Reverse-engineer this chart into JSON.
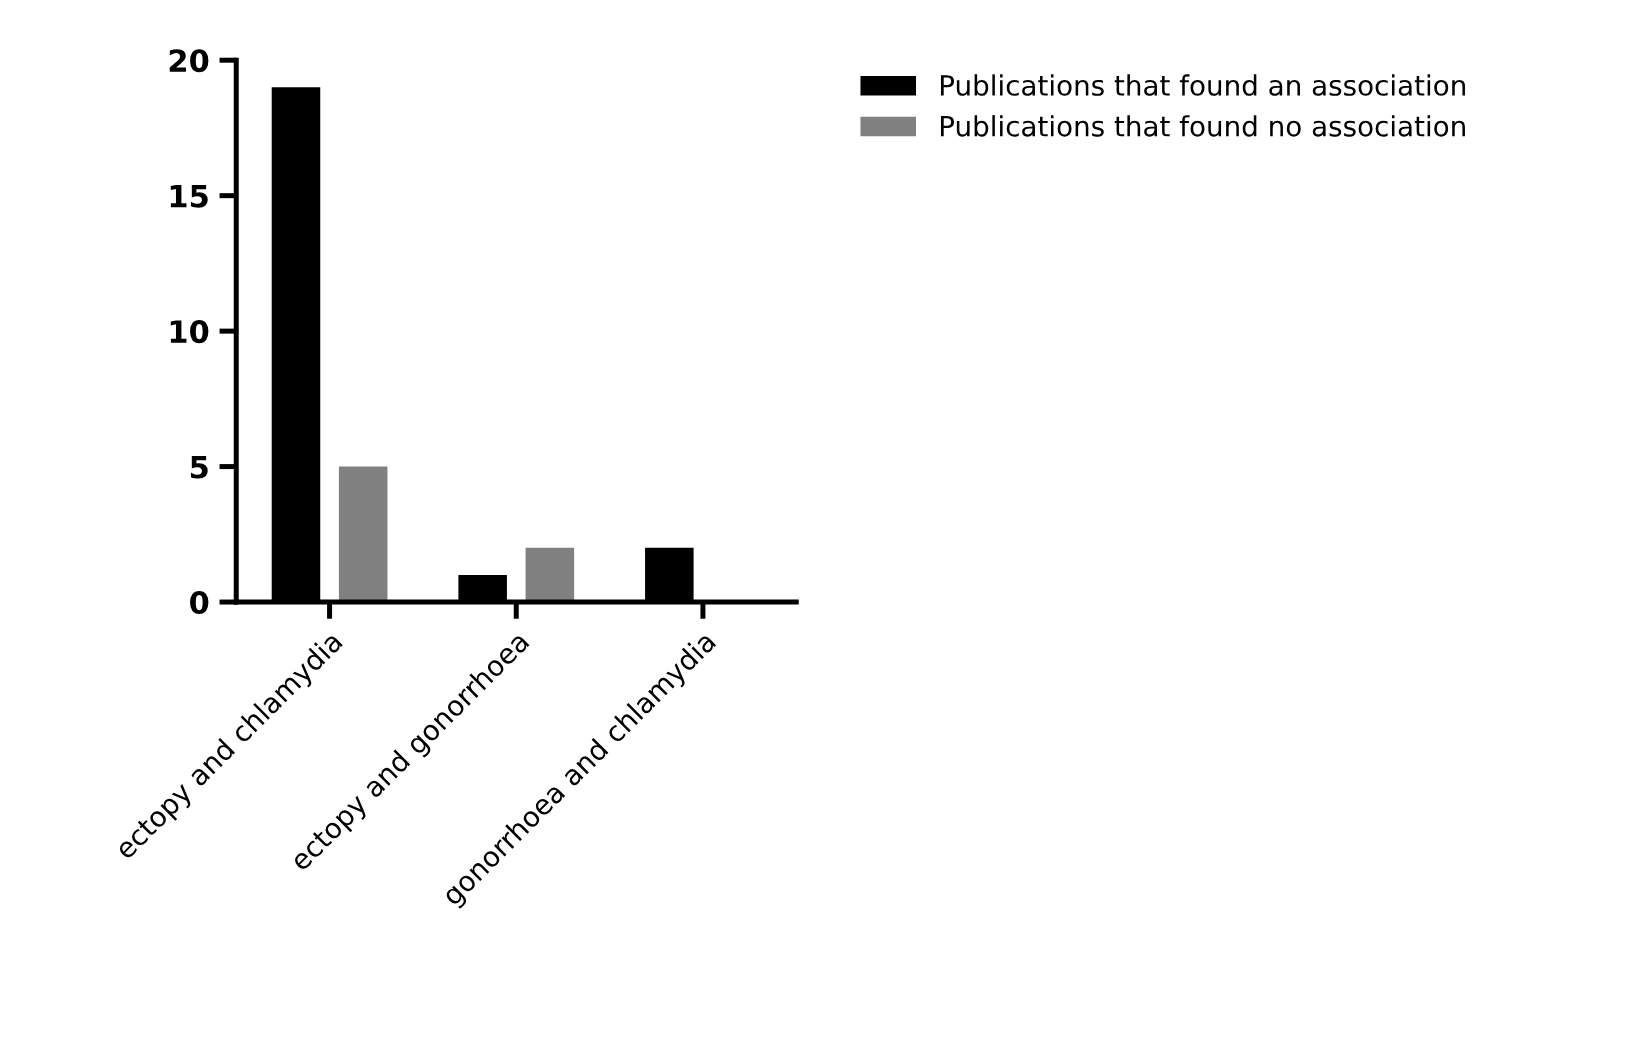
{
  "chart_data": {
    "type": "bar",
    "categories": [
      "ectopy and chlamydia",
      "ectopy and gonorrhoea",
      "gonorrhoea and chlamydia"
    ],
    "series": [
      {
        "name": "Publications that found an association",
        "color": "#000000",
        "values": [
          19,
          1,
          2
        ]
      },
      {
        "name": "Publications that found no association",
        "color": "#808080",
        "values": [
          5,
          2,
          null
        ]
      }
    ],
    "ylim": [
      0,
      20
    ],
    "yticks": [
      0,
      5,
      10,
      15,
      20
    ],
    "grid": false,
    "legend": "top right"
  }
}
